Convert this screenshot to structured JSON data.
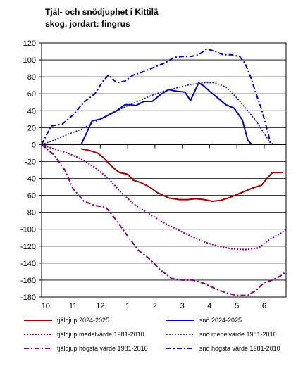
{
  "chart_data": {
    "type": "line",
    "title": [
      "Tjäl- och snödjuphet i Kittilä",
      "skog, jordart: fingrus"
    ],
    "xlabel": "",
    "ylabel": "",
    "ylim": [
      -180,
      120
    ],
    "yticks": [
      120,
      100,
      80,
      60,
      40,
      20,
      0,
      -20,
      -40,
      -60,
      -80,
      -100,
      -120,
      -140,
      -160,
      -180
    ],
    "xlim": [
      10,
      6.8
    ],
    "x_ticks": [
      {
        "label": "10",
        "x": 10
      },
      {
        "label": "11",
        "x": 11
      },
      {
        "label": "12",
        "x": 12
      },
      {
        "label": "1",
        "x": 13
      },
      {
        "label": "2",
        "x": 14
      },
      {
        "label": "3",
        "x": 15
      },
      {
        "label": "4",
        "x": 16
      },
      {
        "label": "5",
        "x": 17
      },
      {
        "label": "6",
        "x": 18
      }
    ],
    "x_range": [
      9.85,
      18.8
    ],
    "grid": "horizontal",
    "legend_position": "bottom",
    "series": [
      {
        "name": "tjäldjup 2024-2025",
        "color": "#a00000",
        "dash": "solid",
        "width": 2,
        "points": [
          [
            11.3,
            -5
          ],
          [
            11.6,
            -7
          ],
          [
            11.9,
            -10
          ],
          [
            12.1,
            -15
          ],
          [
            12.3,
            -22
          ],
          [
            12.5,
            -28
          ],
          [
            12.7,
            -33
          ],
          [
            13.0,
            -35
          ],
          [
            13.2,
            -42
          ],
          [
            13.5,
            -45
          ],
          [
            13.8,
            -50
          ],
          [
            14.1,
            -57
          ],
          [
            14.5,
            -63
          ],
          [
            14.9,
            -65
          ],
          [
            15.2,
            -65
          ],
          [
            15.5,
            -64
          ],
          [
            15.8,
            -65
          ],
          [
            16.1,
            -67
          ],
          [
            16.4,
            -66
          ],
          [
            16.7,
            -63
          ],
          [
            17.0,
            -59
          ],
          [
            17.3,
            -55
          ],
          [
            17.6,
            -51
          ],
          [
            17.9,
            -48
          ],
          [
            18.1,
            -40
          ],
          [
            18.3,
            -33
          ],
          [
            18.7,
            -33
          ]
        ]
      },
      {
        "name": "snö 2024-2025",
        "color": "#0000c0",
        "dash": "solid",
        "width": 2,
        "points": [
          [
            11.3,
            0
          ],
          [
            11.7,
            28
          ],
          [
            12.0,
            30
          ],
          [
            12.3,
            35
          ],
          [
            12.6,
            40
          ],
          [
            12.9,
            47
          ],
          [
            13.1,
            47
          ],
          [
            13.3,
            46
          ],
          [
            13.6,
            51
          ],
          [
            13.9,
            51
          ],
          [
            14.2,
            59
          ],
          [
            14.5,
            65
          ],
          [
            14.8,
            63
          ],
          [
            15.1,
            62
          ],
          [
            15.3,
            52
          ],
          [
            15.6,
            73
          ],
          [
            15.8,
            69
          ],
          [
            16.0,
            63
          ],
          [
            16.3,
            55
          ],
          [
            16.6,
            47
          ],
          [
            16.9,
            43
          ],
          [
            17.2,
            29
          ],
          [
            17.4,
            5
          ],
          [
            17.55,
            0
          ]
        ]
      },
      {
        "name": "tjäldjup medelvärde 1981-2010",
        "color": "#800080",
        "dash": "dot",
        "width": 2,
        "points": [
          [
            9.85,
            0
          ],
          [
            10.3,
            -5
          ],
          [
            10.8,
            -10
          ],
          [
            11.3,
            -17
          ],
          [
            11.8,
            -27
          ],
          [
            12.3,
            -40
          ],
          [
            12.8,
            -58
          ],
          [
            13.3,
            -72
          ],
          [
            13.8,
            -82
          ],
          [
            14.3,
            -92
          ],
          [
            14.8,
            -100
          ],
          [
            15.3,
            -108
          ],
          [
            15.8,
            -115
          ],
          [
            16.3,
            -120
          ],
          [
            16.8,
            -123
          ],
          [
            17.3,
            -124
          ],
          [
            17.8,
            -122
          ],
          [
            18.2,
            -112
          ],
          [
            18.6,
            -105
          ],
          [
            18.8,
            -100
          ],
          [
            19.0,
            -90
          ],
          [
            19.2,
            -80
          ],
          [
            19.3,
            -70
          ]
        ]
      },
      {
        "name": "snö medelvärde 1981-2010",
        "color": "#0000c0",
        "dash": "dot",
        "width": 1.5,
        "points": [
          [
            9.85,
            0
          ],
          [
            10.3,
            5
          ],
          [
            10.8,
            12
          ],
          [
            11.3,
            18
          ],
          [
            11.8,
            27
          ],
          [
            12.3,
            35
          ],
          [
            12.8,
            43
          ],
          [
            13.3,
            50
          ],
          [
            13.8,
            57
          ],
          [
            14.3,
            63
          ],
          [
            14.8,
            67
          ],
          [
            15.3,
            71
          ],
          [
            15.8,
            73
          ],
          [
            16.2,
            73
          ],
          [
            16.6,
            68
          ],
          [
            17.0,
            55
          ],
          [
            17.4,
            40
          ],
          [
            17.7,
            28
          ],
          [
            18.0,
            13
          ],
          [
            18.2,
            3
          ],
          [
            18.35,
            0
          ]
        ]
      },
      {
        "name": "tjäldjup högsta värde 1981-2010",
        "color": "#800080",
        "dash": "dashdot",
        "width": 2,
        "points": [
          [
            9.85,
            0
          ],
          [
            10.3,
            -12
          ],
          [
            10.7,
            -30
          ],
          [
            11.0,
            -52
          ],
          [
            11.4,
            -67
          ],
          [
            11.8,
            -72
          ],
          [
            12.2,
            -74
          ],
          [
            12.6,
            -90
          ],
          [
            13.0,
            -108
          ],
          [
            13.4,
            -125
          ],
          [
            13.8,
            -135
          ],
          [
            14.2,
            -148
          ],
          [
            14.6,
            -158
          ],
          [
            15.0,
            -160
          ],
          [
            15.4,
            -160
          ],
          [
            15.8,
            -164
          ],
          [
            16.2,
            -170
          ],
          [
            16.6,
            -175
          ],
          [
            17.0,
            -178
          ],
          [
            17.4,
            -178
          ],
          [
            17.7,
            -172
          ],
          [
            18.0,
            -163
          ],
          [
            18.3,
            -160
          ],
          [
            18.6,
            -155
          ],
          [
            18.8,
            -150
          ],
          [
            18.9,
            -145
          ],
          [
            19.1,
            -140
          ]
        ]
      },
      {
        "name": "snö högsta värde 1981-2010",
        "color": "#0000c0",
        "dash": "dashdot",
        "width": 2,
        "points": [
          [
            9.85,
            0
          ],
          [
            10.2,
            22
          ],
          [
            10.6,
            24
          ],
          [
            11.0,
            35
          ],
          [
            11.4,
            50
          ],
          [
            11.8,
            60
          ],
          [
            12.1,
            75
          ],
          [
            12.3,
            82
          ],
          [
            12.6,
            73
          ],
          [
            12.9,
            75
          ],
          [
            13.2,
            82
          ],
          [
            13.5,
            85
          ],
          [
            13.8,
            89
          ],
          [
            14.1,
            93
          ],
          [
            14.4,
            97
          ],
          [
            14.7,
            103
          ],
          [
            15.0,
            104
          ],
          [
            15.3,
            104
          ],
          [
            15.6,
            106
          ],
          [
            15.9,
            113
          ],
          [
            16.2,
            110
          ],
          [
            16.5,
            106
          ],
          [
            16.8,
            106
          ],
          [
            17.1,
            104
          ],
          [
            17.3,
            96
          ],
          [
            17.5,
            80
          ],
          [
            17.7,
            60
          ],
          [
            17.9,
            42
          ],
          [
            18.1,
            18
          ],
          [
            18.25,
            0
          ]
        ]
      }
    ]
  }
}
